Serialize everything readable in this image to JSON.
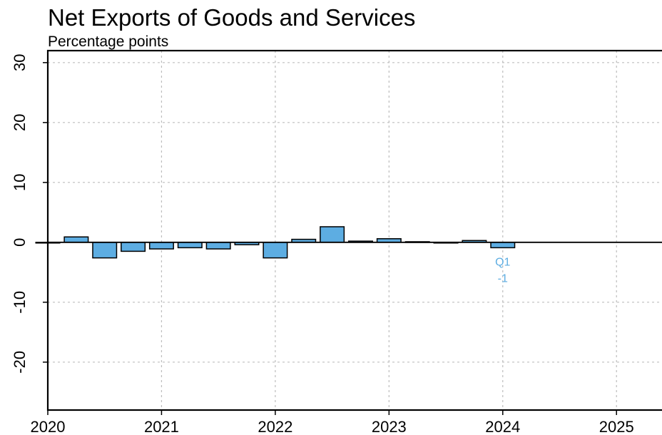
{
  "chart_data": {
    "type": "bar",
    "title": "Net Exports of Goods and Services",
    "subtitle": "Percentage points",
    "xlabel": "",
    "ylabel": "",
    "x_ticks": [
      "2020",
      "2021",
      "2022",
      "2023",
      "2024",
      "2025"
    ],
    "y_ticks": [
      30,
      20,
      10,
      0,
      -10,
      -20
    ],
    "ylim": [
      -28,
      32
    ],
    "xlim": [
      2020.0,
      2025.4
    ],
    "grid": true,
    "bar_color": "#5dade2",
    "categories": [
      "2020 Q1",
      "2020 Q2",
      "2020 Q3",
      "2020 Q4",
      "2021 Q1",
      "2021 Q2",
      "2021 Q3",
      "2021 Q4",
      "2022 Q1",
      "2022 Q2",
      "2022 Q3",
      "2022 Q4",
      "2023 Q1",
      "2023 Q2",
      "2023 Q3",
      "2023 Q4",
      "2024 Q1"
    ],
    "x": [
      2020.0,
      2020.25,
      2020.5,
      2020.75,
      2021.0,
      2021.25,
      2021.5,
      2021.75,
      2022.0,
      2022.25,
      2022.5,
      2022.75,
      2023.0,
      2023.25,
      2023.5,
      2023.75,
      2024.0
    ],
    "values": [
      0.0,
      0.9,
      -2.6,
      -1.5,
      -1.1,
      -0.9,
      -1.1,
      -0.4,
      -2.6,
      0.5,
      2.6,
      0.2,
      0.6,
      0.1,
      0.0,
      0.3,
      -0.9
    ],
    "annotation": {
      "line1": "Q1",
      "line2": "-1",
      "color": "#5dade2"
    }
  }
}
